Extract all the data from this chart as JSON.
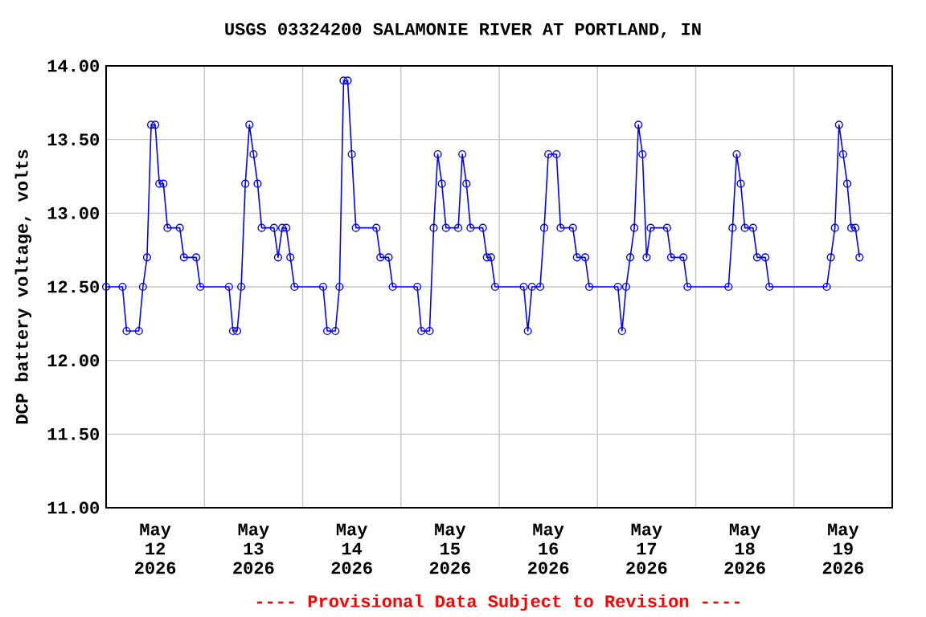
{
  "chart_data": {
    "type": "line",
    "title": "USGS 03324200 SALAMONIE RIVER AT PORTLAND, IN",
    "ylabel": "DCP battery voltage, volts",
    "annotations": [
      "---- Provisional Data Subject to Revision ----"
    ],
    "xlim": [
      "2026-05-12T00:00",
      "2026-05-20T00:00"
    ],
    "xticks": [
      {
        "value": "2026-05-12T12:00",
        "label": "May 12 2026"
      },
      {
        "value": "2026-05-13T12:00",
        "label": "May 13 2026"
      },
      {
        "value": "2026-05-14T12:00",
        "label": "May 14 2026"
      },
      {
        "value": "2026-05-15T12:00",
        "label": "May 15 2026"
      },
      {
        "value": "2026-05-16T12:00",
        "label": "May 16 2026"
      },
      {
        "value": "2026-05-17T12:00",
        "label": "May 17 2026"
      },
      {
        "value": "2026-05-18T12:00",
        "label": "May 18 2026"
      },
      {
        "value": "2026-05-19T12:00",
        "label": "May 19 2026"
      },
      {
        "value": "2026-05-13T00:00",
        "label": null
      },
      {
        "value": "2026-05-14T00:00",
        "label": null
      },
      {
        "value": "2026-05-15T00:00",
        "label": null
      },
      {
        "value": "2026-05-16T00:00",
        "label": null
      },
      {
        "value": "2026-05-17T00:00",
        "label": null
      },
      {
        "value": "2026-05-18T00:00",
        "label": null
      },
      {
        "value": "2026-05-19T00:00",
        "label": null
      }
    ],
    "ylim": [
      11,
      14
    ],
    "yticks": [
      {
        "value": 11,
        "label": "11.00"
      },
      {
        "value": 11.5,
        "label": "11.50"
      },
      {
        "value": 12,
        "label": "12.00"
      },
      {
        "value": 12.5,
        "label": "12.50"
      },
      {
        "value": 13,
        "label": "13.00"
      },
      {
        "value": 13.5,
        "label": "13.50"
      },
      {
        "value": 14,
        "label": "14.00"
      }
    ],
    "grid": true,
    "marker": "circle",
    "line_style": "solid",
    "series": [
      {
        "color": "#0000ff",
        "x": [
          "2026-05-12T00:00",
          "2026-05-12T04:00",
          "2026-05-12T05:00",
          "2026-05-12T08:00",
          "2026-05-12T09:00",
          "2026-05-12T10:00",
          "2026-05-12T11:00",
          "2026-05-12T12:00",
          "2026-05-12T13:00",
          "2026-05-12T14:00",
          "2026-05-12T15:00",
          "2026-05-12T18:00",
          "2026-05-12T19:00",
          "2026-05-12T22:00",
          "2026-05-12T23:00",
          "2026-05-13T06:00",
          "2026-05-13T07:00",
          "2026-05-13T08:00",
          "2026-05-13T09:00",
          "2026-05-13T10:00",
          "2026-05-13T11:00",
          "2026-05-13T12:00",
          "2026-05-13T13:00",
          "2026-05-13T14:00",
          "2026-05-13T17:00",
          "2026-05-13T18:00",
          "2026-05-13T19:00",
          "2026-05-13T20:00",
          "2026-05-13T21:00",
          "2026-05-13T22:00",
          "2026-05-14T05:00",
          "2026-05-14T06:00",
          "2026-05-14T08:00",
          "2026-05-14T09:00",
          "2026-05-14T10:00",
          "2026-05-14T11:00",
          "2026-05-14T12:00",
          "2026-05-14T13:00",
          "2026-05-14T18:00",
          "2026-05-14T19:00",
          "2026-05-14T21:00",
          "2026-05-14T22:00",
          "2026-05-15T04:00",
          "2026-05-15T05:00",
          "2026-05-15T07:00",
          "2026-05-15T08:00",
          "2026-05-15T09:00",
          "2026-05-15T10:00",
          "2026-05-15T11:00",
          "2026-05-15T14:00",
          "2026-05-15T15:00",
          "2026-05-15T16:00",
          "2026-05-15T17:00",
          "2026-05-15T20:00",
          "2026-05-15T21:00",
          "2026-05-15T22:00",
          "2026-05-15T23:00",
          "2026-05-16T06:00",
          "2026-05-16T07:00",
          "2026-05-16T08:00",
          "2026-05-16T10:00",
          "2026-05-16T11:00",
          "2026-05-16T12:00",
          "2026-05-16T14:00",
          "2026-05-16T15:00",
          "2026-05-16T18:00",
          "2026-05-16T19:00",
          "2026-05-16T21:00",
          "2026-05-16T22:00",
          "2026-05-17T05:00",
          "2026-05-17T06:00",
          "2026-05-17T07:00",
          "2026-05-17T08:00",
          "2026-05-17T09:00",
          "2026-05-17T10:00",
          "2026-05-17T11:00",
          "2026-05-17T12:00",
          "2026-05-17T13:00",
          "2026-05-17T17:00",
          "2026-05-17T18:00",
          "2026-05-17T21:00",
          "2026-05-17T22:00",
          "2026-05-18T08:00",
          "2026-05-18T09:00",
          "2026-05-18T10:00",
          "2026-05-18T11:00",
          "2026-05-18T12:00",
          "2026-05-18T14:00",
          "2026-05-18T15:00",
          "2026-05-18T17:00",
          "2026-05-18T18:00",
          "2026-05-19T08:00",
          "2026-05-19T09:00",
          "2026-05-19T10:00",
          "2026-05-19T11:00",
          "2026-05-19T12:00",
          "2026-05-19T13:00",
          "2026-05-19T14:00",
          "2026-05-19T15:00",
          "2026-05-19T16:00"
        ],
        "values": [
          12.5,
          12.5,
          12.2,
          12.2,
          12.5,
          12.7,
          13.6,
          13.6,
          13.2,
          13.2,
          12.9,
          12.9,
          12.7,
          12.7,
          12.5,
          12.5,
          12.2,
          12.2,
          12.5,
          13.2,
          13.6,
          13.4,
          13.2,
          12.9,
          12.9,
          12.7,
          12.9,
          12.9,
          12.7,
          12.5,
          12.5,
          12.2,
          12.2,
          12.5,
          13.9,
          13.9,
          13.4,
          12.9,
          12.9,
          12.7,
          12.7,
          12.5,
          12.5,
          12.2,
          12.2,
          12.9,
          13.4,
          13.2,
          12.9,
          12.9,
          13.4,
          13.2,
          12.9,
          12.9,
          12.7,
          12.7,
          12.5,
          12.5,
          12.2,
          12.5,
          12.5,
          12.9,
          13.4,
          13.4,
          12.9,
          12.9,
          12.7,
          12.7,
          12.5,
          12.5,
          12.2,
          12.5,
          12.7,
          12.9,
          13.6,
          13.4,
          12.7,
          12.9,
          12.9,
          12.7,
          12.7,
          12.5,
          12.5,
          12.9,
          13.4,
          13.2,
          12.9,
          12.9,
          12.7,
          12.7,
          12.5,
          12.5,
          12.7,
          12.9,
          13.6,
          13.4,
          13.2,
          12.9,
          12.9,
          12.7
        ]
      }
    ]
  }
}
